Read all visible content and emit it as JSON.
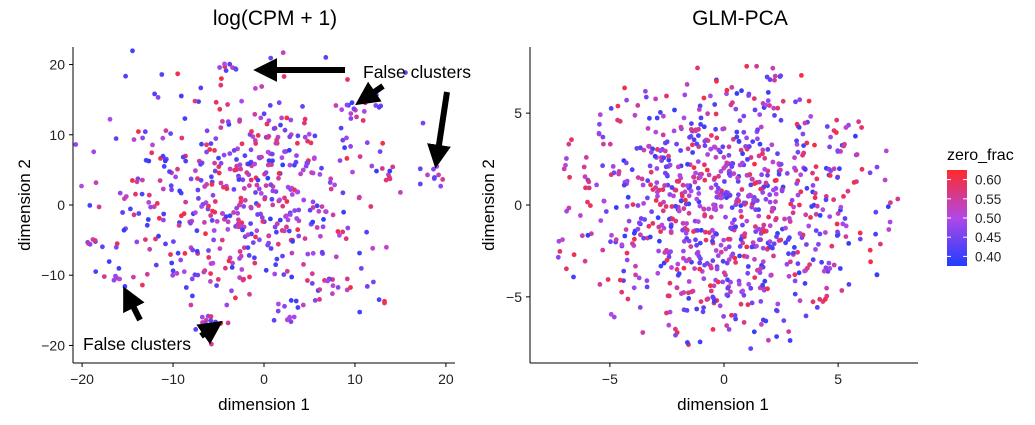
{
  "chart_data": [
    {
      "type": "scatter",
      "title": "log(CPM + 1)",
      "xlabel": "dimension 1",
      "ylabel": "dimension 2",
      "xlim": [
        -21,
        21
      ],
      "ylim": [
        -22.5,
        22.5
      ],
      "xticks": [
        -20,
        -10,
        0,
        10,
        20
      ],
      "yticks": [
        -20,
        -10,
        0,
        10,
        20
      ],
      "annotations": [
        {
          "text": "False clusters",
          "position": "top-right"
        },
        {
          "text": "False clusters",
          "position": "bottom-left"
        }
      ],
      "clusters": [
        {
          "cx": -2,
          "cy": 1.5,
          "sx": 7.5,
          "sy": 7.5,
          "n": 520
        },
        {
          "cx": -4,
          "cy": 19.5,
          "sx": 0.7,
          "sy": 0.6,
          "n": 8
        },
        {
          "cx": 9.8,
          "cy": 13.5,
          "sx": 0.8,
          "sy": 0.7,
          "n": 10
        },
        {
          "cx": 18.5,
          "cy": 3.8,
          "sx": 0.7,
          "sy": 0.8,
          "n": 10
        },
        {
          "cx": -18.8,
          "cy": -5.2,
          "sx": 0.5,
          "sy": 0.4,
          "n": 6
        },
        {
          "cx": -16.5,
          "cy": -10.5,
          "sx": 0.5,
          "sy": 0.4,
          "n": 5
        },
        {
          "cx": -5.5,
          "cy": -16.5,
          "sx": 1.0,
          "sy": 1.0,
          "n": 12
        },
        {
          "cx": 2,
          "cy": -15.5,
          "sx": 1.0,
          "sy": 0.8,
          "n": 10
        },
        {
          "cx": 13.5,
          "cy": -14,
          "sx": 0.3,
          "sy": 0.3,
          "n": 3
        },
        {
          "cx": 13,
          "cy": 5,
          "sx": 0.6,
          "sy": 0.8,
          "n": 5
        },
        {
          "cx": 7,
          "cy": -11.5,
          "sx": 1.5,
          "sy": 1.2,
          "n": 16
        }
      ],
      "seed": 7
    },
    {
      "type": "scatter",
      "title": "GLM-PCA",
      "xlabel": "dimension 1",
      "ylabel": "dimension 2",
      "xlim": [
        -8.5,
        8.5
      ],
      "ylim": [
        -8.6,
        8.6
      ],
      "xticks": [
        -5,
        0,
        5
      ],
      "yticks": [
        -5,
        0,
        5
      ],
      "clusters": [
        {
          "cx": 0,
          "cy": 0,
          "sx": 3.5,
          "sy": 3.6,
          "n": 900,
          "radius": 7.8
        }
      ],
      "seed": 23
    }
  ],
  "legend": {
    "title": "zero_frac",
    "ticks": [
      0.6,
      0.55,
      0.5,
      0.45,
      0.4
    ],
    "tick_labels": [
      "0.60",
      "0.55",
      "0.50",
      "0.45",
      "0.40"
    ],
    "range": [
      0.375,
      0.625
    ],
    "colors": {
      "low": "#1f3dff",
      "mid": "#b048e8",
      "high": "#ff2a2a"
    }
  }
}
